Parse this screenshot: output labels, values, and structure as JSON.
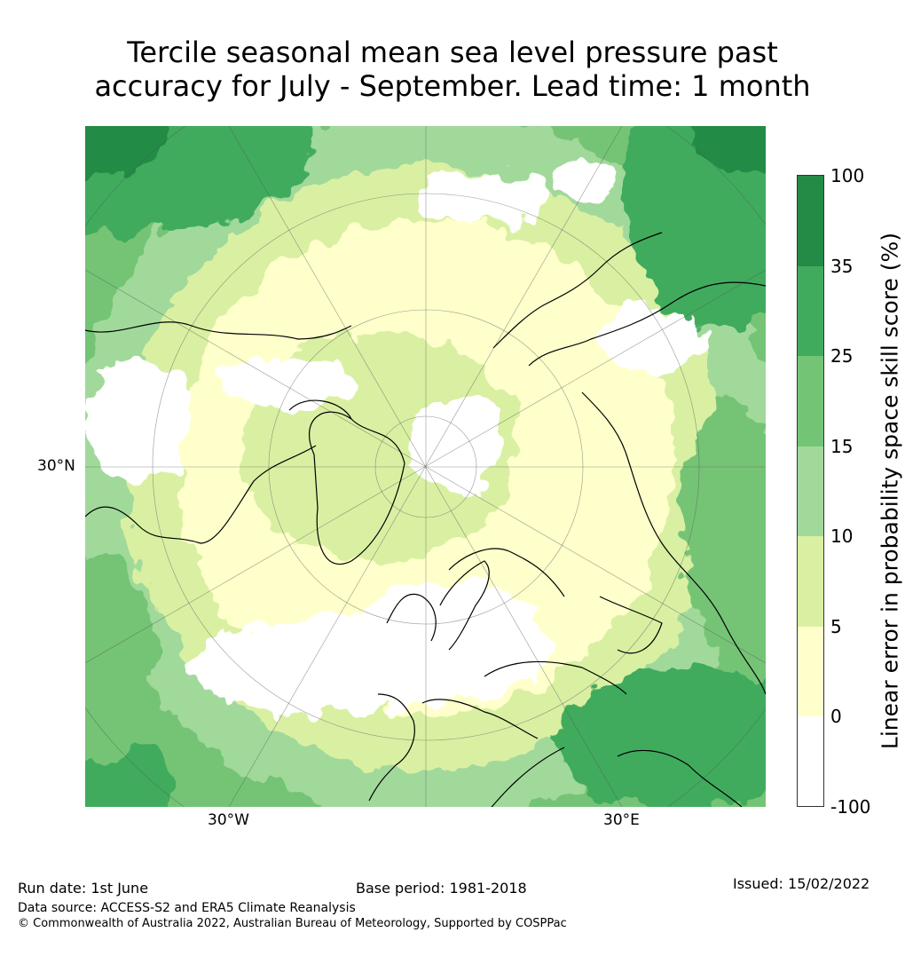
{
  "title": {
    "line1": "Tercile seasonal mean sea level pressure past",
    "line2": "accuracy for July - September. Lead time: 1 month"
  },
  "map": {
    "projection": "north polar stereographic",
    "labels": {
      "lat_30n": "30°N",
      "lon_30w": "30°W",
      "lon_30e": "30°E"
    }
  },
  "colorbar": {
    "title": "Linear error in probability space skill score (%)",
    "ticks": [
      "100",
      "35",
      "25",
      "15",
      "10",
      "5",
      "0",
      "-100"
    ],
    "colors": [
      "#238b45",
      "#41ab5d",
      "#74c476",
      "#a1d99b",
      "#d9f0a3",
      "#ffffcc",
      "#ffffff"
    ]
  },
  "footer": {
    "run_date": "Run date: 1st June",
    "base_period": "Base period: 1981-2018",
    "issued": "Issued: 15/02/2022",
    "data_source": "Data source: ACCESS-S2 and ERA5 Climate Reanalysis",
    "copyright": "© Commonwealth of Australia 2022, Australian Bureau of Meteorology, Supported by COSPPac"
  }
}
